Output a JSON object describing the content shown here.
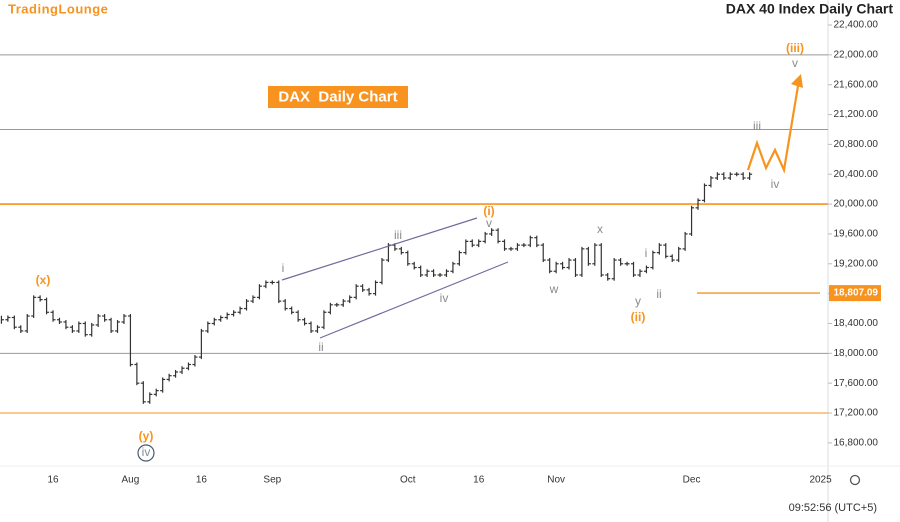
{
  "chart_data": {
    "type": "ohlc",
    "brand": "TradingLounge",
    "title": "DAX 40 Index Daily Chart",
    "subtitle": "DAX  Daily Chart",
    "timestamp": "09:52:56 (UTC+5)",
    "categories": [
      null,
      null,
      null,
      null,
      null,
      null,
      null,
      null,
      "16",
      null,
      null,
      null,
      null,
      null,
      null,
      null,
      null,
      null,
      null,
      null,
      "Aug",
      null,
      null,
      null,
      null,
      null,
      null,
      null,
      null,
      null,
      null,
      "16",
      null,
      null,
      null,
      null,
      null,
      null,
      null,
      null,
      null,
      null,
      "Sep",
      null,
      null,
      null,
      null,
      null,
      null,
      null,
      null,
      null,
      null,
      null,
      null,
      null,
      null,
      null,
      null,
      null,
      null,
      null,
      null,
      "Oct",
      null,
      null,
      null,
      null,
      null,
      null,
      null,
      null,
      null,
      null,
      "16",
      null,
      null,
      null,
      null,
      null,
      null,
      null,
      null,
      null,
      null,
      null,
      "Nov",
      null,
      null,
      null,
      null,
      null,
      null,
      null,
      null,
      null,
      null,
      null,
      null,
      null,
      null,
      null,
      null,
      null,
      null,
      null,
      null,
      "Dec",
      null,
      null,
      null,
      null,
      null,
      null,
      null,
      null,
      null,
      null,
      null,
      null,
      null,
      null,
      null,
      null,
      null,
      null,
      null,
      "2025"
    ],
    "series": [
      {
        "name": "DAX",
        "color": "#333333",
        "values": [
          18450,
          18480,
          18350,
          18300,
          18500,
          18750,
          18720,
          18550,
          18450,
          18420,
          18350,
          18300,
          18400,
          18250,
          18380,
          18500,
          18450,
          18300,
          18420,
          18500,
          17850,
          17600,
          17350,
          17450,
          17500,
          17650,
          17700,
          17750,
          17800,
          17850,
          17950,
          18300,
          18400,
          18450,
          18480,
          18520,
          18550,
          18600,
          18700,
          18750,
          18900,
          18950,
          18950,
          18700,
          18600,
          18550,
          18450,
          18400,
          18300,
          18350,
          18550,
          18650,
          18650,
          18700,
          18750,
          18900,
          18850,
          18800,
          18950,
          19250,
          19450,
          19400,
          19350,
          19200,
          19150,
          19050,
          19100,
          19050,
          19050,
          19100,
          19200,
          19350,
          19500,
          19450,
          19500,
          19600,
          19650,
          19500,
          19400,
          19400,
          19450,
          19450,
          19550,
          19450,
          19250,
          19100,
          19200,
          19150,
          19250,
          19050,
          19400,
          19200,
          19450,
          19050,
          19000,
          19250,
          19200,
          19200,
          19050,
          19100,
          19150,
          19350,
          19450,
          19300,
          19250,
          19400,
          19600,
          19950,
          20050,
          20250,
          20350,
          20400,
          20350,
          20400,
          20400,
          20350,
          20400,
          null,
          null,
          null,
          null,
          null,
          null,
          null,
          null,
          null,
          null,
          null
        ]
      }
    ],
    "ylim": [
      16490,
      22735
    ],
    "yticks": [
      {
        "value": 16800,
        "label": "16,800.00"
      },
      {
        "value": 17200,
        "label": "17,200.00"
      },
      {
        "value": 17600,
        "label": "17,600.00"
      },
      {
        "value": 18000,
        "label": "18,000.00"
      },
      {
        "value": 18400,
        "label": "18,400.00"
      },
      {
        "value": 18800,
        "label": "18,800.00"
      },
      {
        "value": 19200,
        "label": "19,200.00"
      },
      {
        "value": 19600,
        "label": "19,600.00"
      },
      {
        "value": 20000,
        "label": "20,000.00"
      },
      {
        "value": 20400,
        "label": "20,400.00"
      },
      {
        "value": 20800,
        "label": "20,800.00"
      },
      {
        "value": 21200,
        "label": "21,200.00"
      },
      {
        "value": 21600,
        "label": "21,600.00"
      },
      {
        "value": 22000,
        "label": "22,000.00"
      },
      {
        "value": 22400,
        "label": "22,400.00"
      }
    ],
    "levels": [
      {
        "value": 22000,
        "color": "#999999"
      },
      {
        "value": 21000,
        "color": "#999999"
      },
      {
        "value": 20000,
        "color": "#f7931e"
      },
      {
        "value": 18000,
        "color": "#999999"
      },
      {
        "value": 17200,
        "color": "#f7931e"
      }
    ],
    "marker_level": {
      "value": 18807.09,
      "label": "18,807.09",
      "color": "#f7931e"
    },
    "annotations": [
      {
        "text": "(x)",
        "color": "#f7931e"
      },
      {
        "text": "(y)",
        "color": "#f7931e"
      },
      {
        "text": "iv",
        "color": "#7f8c99"
      },
      {
        "text": "i",
        "color": "#8a8a8a"
      },
      {
        "text": "ii",
        "color": "#8a8a8a"
      },
      {
        "text": "iii",
        "color": "#8a8a8a"
      },
      {
        "text": "iv",
        "color": "#8a8a8a"
      },
      {
        "text": "(i)",
        "color": "#f7931e"
      },
      {
        "text": "v",
        "color": "#8a8a8a"
      },
      {
        "text": "w",
        "color": "#8a8a8a"
      },
      {
        "text": "x",
        "color": "#8a8a8a"
      },
      {
        "text": "y",
        "color": "#8a8a8a"
      },
      {
        "text": "(ii)",
        "color": "#f7931e"
      },
      {
        "text": "i",
        "color": "#8a8a8a"
      },
      {
        "text": "ii",
        "color": "#8a8a8a"
      },
      {
        "text": "iii",
        "color": "#8a8a8a"
      },
      {
        "text": "iv",
        "color": "#8a8a8a"
      },
      {
        "text": "v",
        "color": "#8a8a8a"
      },
      {
        "text": "(iii)",
        "color": "#f7931e"
      }
    ]
  }
}
